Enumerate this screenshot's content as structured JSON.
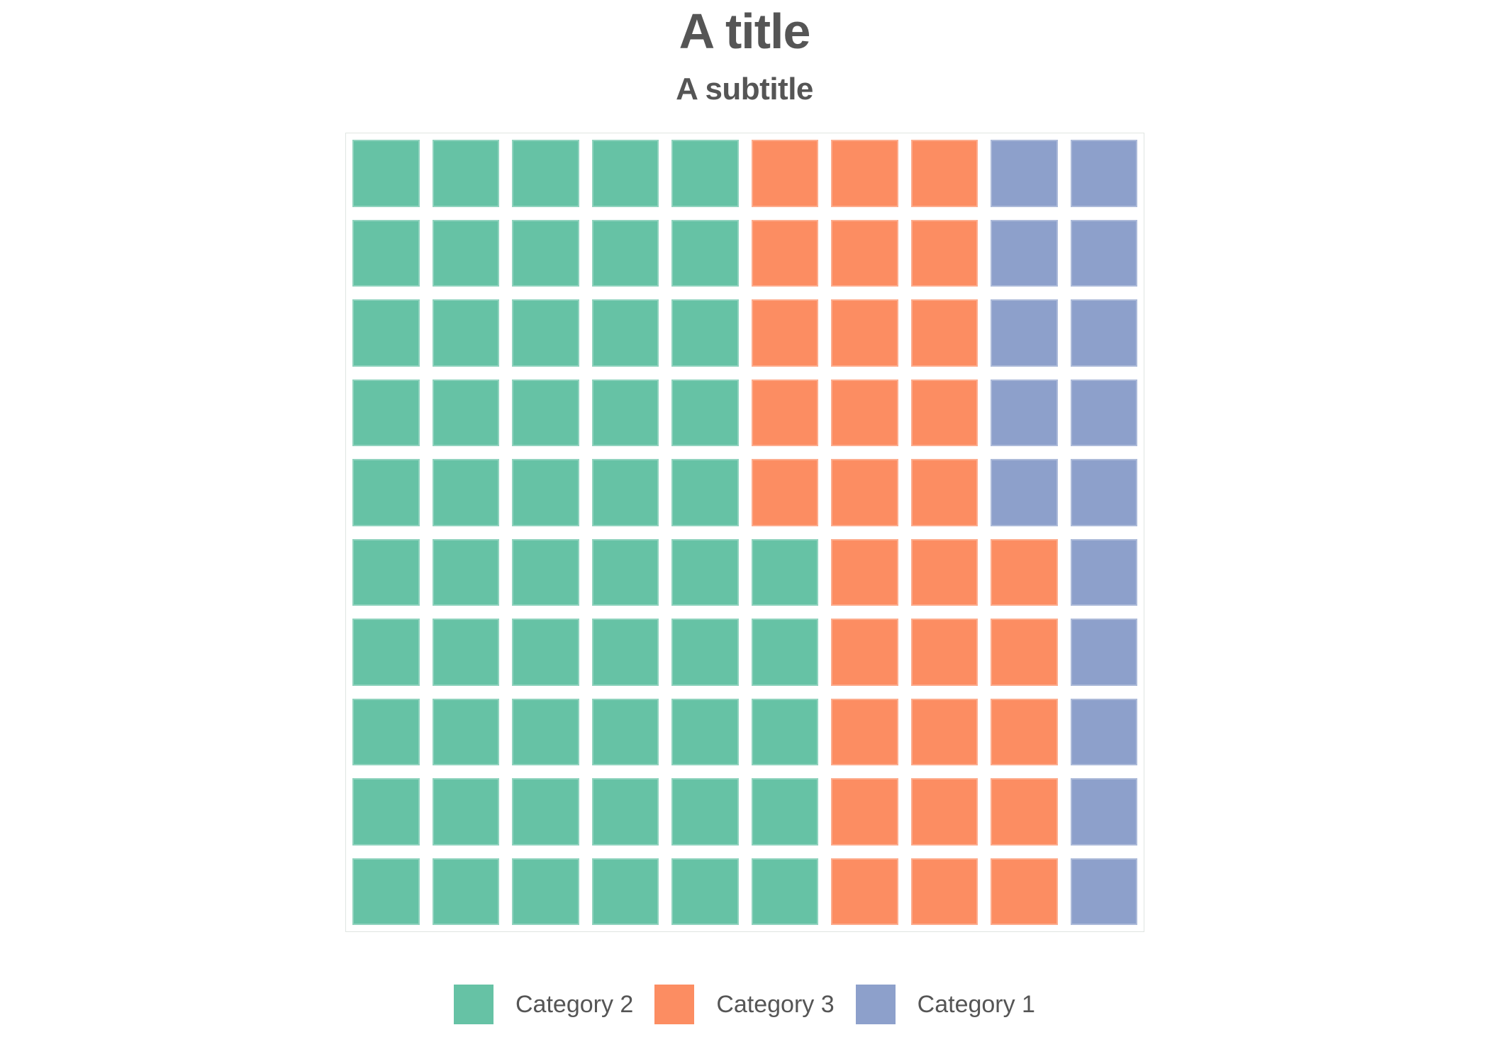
{
  "header": {
    "title": "A title",
    "subtitle": "A subtitle"
  },
  "colors": {
    "c1": "#8da0cb",
    "c2": "#66c2a5",
    "c3": "#fc8d62",
    "text": "#555555"
  },
  "legend": {
    "position": "bottom",
    "items": [
      {
        "id": "c2",
        "label": "Category 2",
        "color": "#66c2a5"
      },
      {
        "id": "c3",
        "label": "Category 3",
        "color": "#fc8d62"
      },
      {
        "id": "c1",
        "label": "Category 1",
        "color": "#8da0cb"
      }
    ]
  },
  "chart_data": {
    "type": "waffle",
    "title": "A title",
    "subtitle": "A subtitle",
    "rows": 10,
    "cols": 10,
    "total_cells": 100,
    "unit_per_cell": 1,
    "legend_position": "bottom",
    "legend_entries": [
      "Category 2",
      "Category 3",
      "Category 1"
    ],
    "series": [
      {
        "name": "Category 2",
        "value": 55,
        "color": "#66c2a5"
      },
      {
        "name": "Category 3",
        "value": 30,
        "color": "#fc8d62"
      },
      {
        "name": "Category 1",
        "value": 15,
        "color": "#8da0cb"
      }
    ],
    "cells_by_row": [
      [
        "c2",
        "c2",
        "c2",
        "c2",
        "c2",
        "c3",
        "c3",
        "c3",
        "c1",
        "c1"
      ],
      [
        "c2",
        "c2",
        "c2",
        "c2",
        "c2",
        "c3",
        "c3",
        "c3",
        "c1",
        "c1"
      ],
      [
        "c2",
        "c2",
        "c2",
        "c2",
        "c2",
        "c3",
        "c3",
        "c3",
        "c1",
        "c1"
      ],
      [
        "c2",
        "c2",
        "c2",
        "c2",
        "c2",
        "c3",
        "c3",
        "c3",
        "c1",
        "c1"
      ],
      [
        "c2",
        "c2",
        "c2",
        "c2",
        "c2",
        "c3",
        "c3",
        "c3",
        "c1",
        "c1"
      ],
      [
        "c2",
        "c2",
        "c2",
        "c2",
        "c2",
        "c2",
        "c3",
        "c3",
        "c3",
        "c1"
      ],
      [
        "c2",
        "c2",
        "c2",
        "c2",
        "c2",
        "c2",
        "c3",
        "c3",
        "c3",
        "c1"
      ],
      [
        "c2",
        "c2",
        "c2",
        "c2",
        "c2",
        "c2",
        "c3",
        "c3",
        "c3",
        "c1"
      ],
      [
        "c2",
        "c2",
        "c2",
        "c2",
        "c2",
        "c2",
        "c3",
        "c3",
        "c3",
        "c1"
      ],
      [
        "c2",
        "c2",
        "c2",
        "c2",
        "c2",
        "c2",
        "c3",
        "c3",
        "c3",
        "c1"
      ]
    ]
  }
}
